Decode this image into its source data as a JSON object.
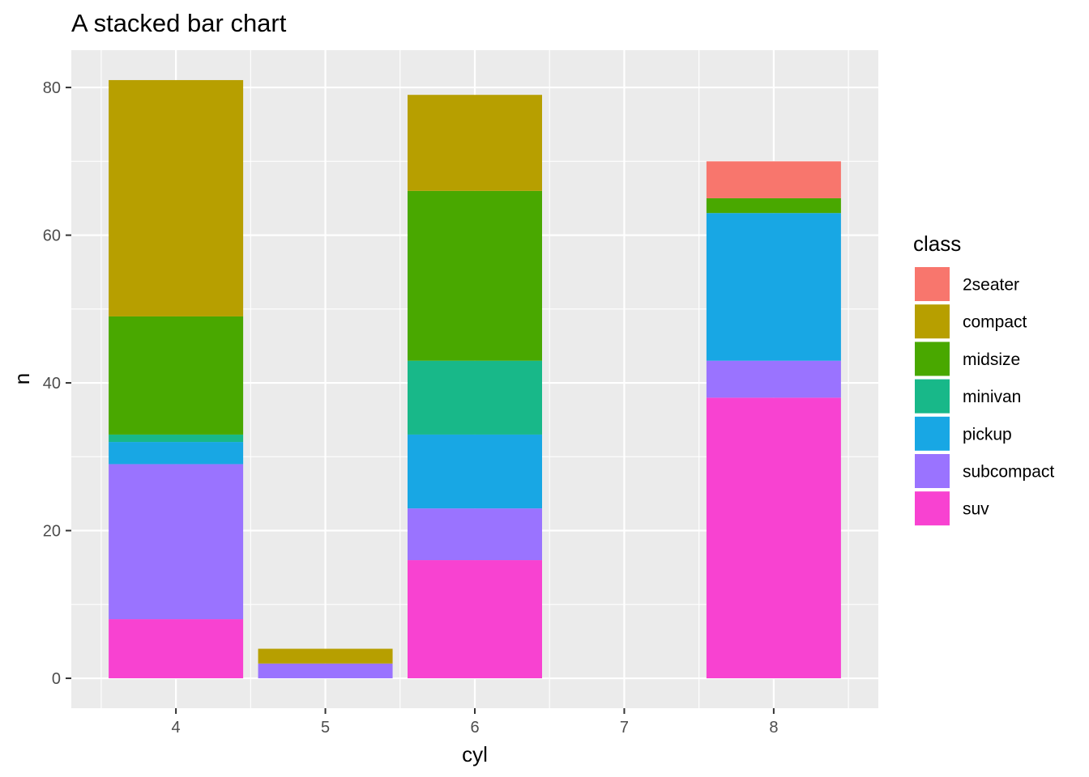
{
  "chart_data": {
    "type": "bar",
    "stacked": true,
    "title": "A stacked bar chart",
    "xlabel": "cyl",
    "ylabel": "n",
    "categories": [
      4,
      5,
      6,
      7,
      8
    ],
    "xlim": [
      3.3,
      8.7
    ],
    "ylim": [
      -4.05,
      85.05
    ],
    "x_ticks": [
      4,
      5,
      6,
      7,
      8
    ],
    "y_ticks": [
      0,
      20,
      40,
      60,
      80
    ],
    "grid": true,
    "legend": {
      "title": "class",
      "position": "right"
    },
    "series": [
      {
        "name": "2seater",
        "color": "#F8766D",
        "values": [
          0,
          0,
          0,
          0,
          5
        ]
      },
      {
        "name": "compact",
        "color": "#B79F00",
        "values": [
          32,
          2,
          13,
          0,
          0
        ]
      },
      {
        "name": "midsize",
        "color": "#49A800",
        "values": [
          16,
          0,
          23,
          0,
          2
        ]
      },
      {
        "name": "minivan",
        "color": "#18B889",
        "values": [
          1,
          0,
          10,
          0,
          0
        ]
      },
      {
        "name": "pickup",
        "color": "#18A7E4",
        "values": [
          3,
          0,
          10,
          0,
          20
        ]
      },
      {
        "name": "subcompact",
        "color": "#9A73FF",
        "values": [
          21,
          2,
          7,
          0,
          5
        ]
      },
      {
        "name": "suv",
        "color": "#F842D1",
        "values": [
          8,
          0,
          16,
          0,
          38
        ]
      }
    ]
  }
}
